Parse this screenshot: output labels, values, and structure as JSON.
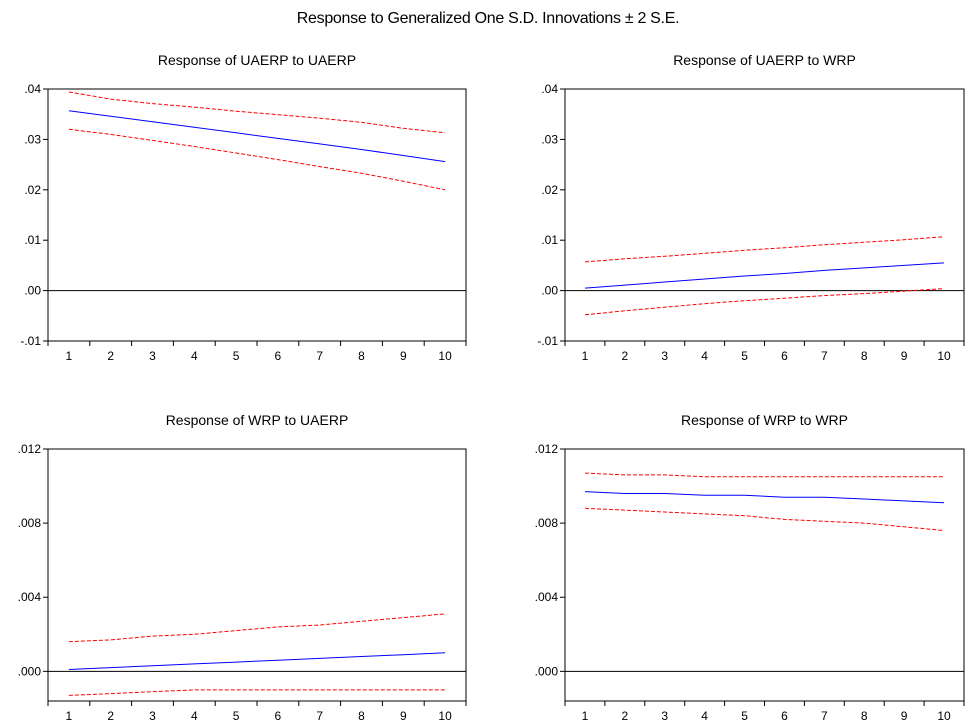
{
  "title": "Response to Generalized One S.D. Innovations ± 2 S.E.",
  "colors": {
    "response": "#0000ff",
    "band": "#ff0000",
    "axis": "#000000",
    "zero": "#000000"
  },
  "chart_data": [
    {
      "type": "line",
      "title": "Response of UAERP to UAERP",
      "x": [
        1,
        2,
        3,
        4,
        5,
        6,
        7,
        8,
        9,
        10
      ],
      "xticks": [
        "1",
        "2",
        "3",
        "4",
        "5",
        "6",
        "7",
        "8",
        "9",
        "10"
      ],
      "ylim": [
        -0.01,
        0.04
      ],
      "yticks": [
        -0.01,
        0.0,
        0.01,
        0.02,
        0.03,
        0.04
      ],
      "ytick_labels": [
        "-.01",
        ".00",
        ".01",
        ".02",
        ".03",
        ".04"
      ],
      "series": [
        {
          "role": "response",
          "values": [
            0.0357,
            0.0346,
            0.0335,
            0.0324,
            0.0313,
            0.0302,
            0.0291,
            0.028,
            0.0268,
            0.0256
          ]
        },
        {
          "role": "upper",
          "values": [
            0.0394,
            0.038,
            0.0371,
            0.0364,
            0.0356,
            0.0349,
            0.0342,
            0.0334,
            0.0322,
            0.0313
          ]
        },
        {
          "role": "lower",
          "values": [
            0.032,
            0.031,
            0.0298,
            0.0286,
            0.0273,
            0.026,
            0.0246,
            0.0233,
            0.0217,
            0.02
          ]
        }
      ]
    },
    {
      "type": "line",
      "title": "Response of UAERP to WRP",
      "x": [
        1,
        2,
        3,
        4,
        5,
        6,
        7,
        8,
        9,
        10
      ],
      "xticks": [
        "1",
        "2",
        "3",
        "4",
        "5",
        "6",
        "7",
        "8",
        "9",
        "10"
      ],
      "ylim": [
        -0.01,
        0.04
      ],
      "yticks": [
        -0.01,
        0.0,
        0.01,
        0.02,
        0.03,
        0.04
      ],
      "ytick_labels": [
        "-.01",
        ".00",
        ".01",
        ".02",
        ".03",
        ".04"
      ],
      "series": [
        {
          "role": "response",
          "values": [
            0.0005,
            0.0011,
            0.0017,
            0.0023,
            0.0029,
            0.0034,
            0.004,
            0.0045,
            0.005,
            0.0055
          ]
        },
        {
          "role": "upper",
          "values": [
            0.0057,
            0.0063,
            0.0068,
            0.0074,
            0.008,
            0.0085,
            0.0091,
            0.0096,
            0.0101,
            0.0107
          ]
        },
        {
          "role": "lower",
          "values": [
            -0.0048,
            -0.004,
            -0.0033,
            -0.0026,
            -0.002,
            -0.0015,
            -0.001,
            -0.0006,
            -0.0001,
            0.0004
          ]
        }
      ]
    },
    {
      "type": "line",
      "title": "Response of WRP to UAERP",
      "x": [
        1,
        2,
        3,
        4,
        5,
        6,
        7,
        8,
        9,
        10
      ],
      "xticks": [
        "1",
        "2",
        "3",
        "4",
        "5",
        "6",
        "7",
        "8",
        "9",
        "10"
      ],
      "ylim": [
        -0.0016,
        0.012
      ],
      "yticks": [
        0.0,
        0.004,
        0.008,
        0.012
      ],
      "ytick_labels": [
        ".000",
        ".004",
        ".008",
        ".012"
      ],
      "series": [
        {
          "role": "response",
          "values": [
            0.0001,
            0.0002,
            0.0003,
            0.0004,
            0.0005,
            0.0006,
            0.0007,
            0.0008,
            0.0009,
            0.001
          ]
        },
        {
          "role": "upper",
          "values": [
            0.0016,
            0.0017,
            0.0019,
            0.002,
            0.0022,
            0.0024,
            0.0025,
            0.0027,
            0.0029,
            0.0031
          ]
        },
        {
          "role": "lower",
          "values": [
            -0.0013,
            -0.0012,
            -0.0011,
            -0.001,
            -0.001,
            -0.001,
            -0.001,
            -0.001,
            -0.001,
            -0.001
          ]
        }
      ]
    },
    {
      "type": "line",
      "title": "Response of WRP to WRP",
      "x": [
        1,
        2,
        3,
        4,
        5,
        6,
        7,
        8,
        9,
        10
      ],
      "xticks": [
        "1",
        "2",
        "3",
        "4",
        "5",
        "6",
        "7",
        "8",
        "9",
        "10"
      ],
      "ylim": [
        -0.0016,
        0.012
      ],
      "yticks": [
        0.0,
        0.004,
        0.008,
        0.012
      ],
      "ytick_labels": [
        ".000",
        ".004",
        ".008",
        ".012"
      ],
      "series": [
        {
          "role": "response",
          "values": [
            0.0097,
            0.0096,
            0.0096,
            0.0095,
            0.0095,
            0.0094,
            0.0094,
            0.0093,
            0.0092,
            0.0091
          ]
        },
        {
          "role": "upper",
          "values": [
            0.0107,
            0.0106,
            0.0106,
            0.0105,
            0.0105,
            0.0105,
            0.0105,
            0.0105,
            0.0105,
            0.0105
          ]
        },
        {
          "role": "lower",
          "values": [
            0.0088,
            0.0087,
            0.0086,
            0.0085,
            0.0084,
            0.0082,
            0.0081,
            0.008,
            0.0078,
            0.0076
          ]
        }
      ]
    }
  ]
}
